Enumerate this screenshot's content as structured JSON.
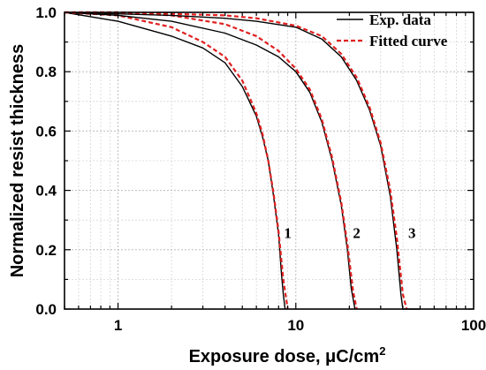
{
  "chart_data": {
    "type": "line",
    "title": "",
    "xlabel": "Exposure dose, μC/cm",
    "xlabel_superscript": "2",
    "ylabel": "Normalized resist thickness",
    "xscale": "log",
    "xlim": [
      0.5,
      100
    ],
    "ylim": [
      0.0,
      1.0
    ],
    "xticks": [
      {
        "value": 1,
        "label": "1"
      },
      {
        "value": 10,
        "label": "10"
      },
      {
        "value": 100,
        "label": "100"
      }
    ],
    "yticks": [
      {
        "value": 0.0,
        "label": "0.0"
      },
      {
        "value": 0.2,
        "label": "0.2"
      },
      {
        "value": 0.4,
        "label": "0.4"
      },
      {
        "value": 0.6,
        "label": "0.6"
      },
      {
        "value": 0.8,
        "label": "0.8"
      },
      {
        "value": 1.0,
        "label": "1.0"
      }
    ],
    "grid": true,
    "legend_position": "top-right",
    "legend": [
      {
        "label": "Exp. data",
        "style": "solid",
        "color": "#000000"
      },
      {
        "label": "Fitted curve",
        "style": "dashed",
        "color": "#e02020"
      }
    ],
    "series": [
      {
        "curve_label": "1",
        "exp": {
          "x": [
            0.5,
            1,
            2,
            3,
            4,
            5,
            6,
            6.5,
            7,
            7.5,
            8,
            8.3,
            8.5,
            8.7
          ],
          "y": [
            1.0,
            0.97,
            0.92,
            0.88,
            0.83,
            0.75,
            0.65,
            0.58,
            0.5,
            0.38,
            0.25,
            0.12,
            0.05,
            0.0
          ]
        },
        "fit": {
          "x": [
            0.5,
            1,
            2,
            3,
            4,
            5,
            6,
            6.5,
            7,
            7.5,
            8,
            8.5,
            9
          ],
          "y": [
            1.0,
            0.99,
            0.95,
            0.9,
            0.85,
            0.77,
            0.66,
            0.59,
            0.5,
            0.39,
            0.26,
            0.1,
            0.0
          ]
        },
        "label_at": {
          "x": 9.0,
          "y": 0.24
        }
      },
      {
        "curve_label": "2",
        "exp": {
          "x": [
            0.5,
            1,
            2,
            4,
            6,
            8,
            10,
            12,
            14,
            16,
            18,
            19.5,
            20.5,
            21.5
          ],
          "y": [
            1.0,
            0.99,
            0.97,
            0.93,
            0.89,
            0.85,
            0.8,
            0.73,
            0.63,
            0.5,
            0.35,
            0.2,
            0.07,
            0.0
          ]
        },
        "fit": {
          "x": [
            0.5,
            1,
            2,
            4,
            6,
            8,
            10,
            12,
            14,
            16,
            18,
            19.5,
            21,
            22
          ],
          "y": [
            1.0,
            1.0,
            0.99,
            0.96,
            0.92,
            0.87,
            0.81,
            0.74,
            0.64,
            0.51,
            0.36,
            0.22,
            0.06,
            0.0
          ]
        },
        "label_at": {
          "x": 22.0,
          "y": 0.24
        }
      },
      {
        "curve_label": "3",
        "exp": {
          "x": [
            0.5,
            1,
            2,
            4,
            6,
            10,
            14,
            18,
            22,
            26,
            30,
            34,
            37,
            39,
            40,
            50
          ],
          "y": [
            1.0,
            0.995,
            0.99,
            0.98,
            0.97,
            0.95,
            0.91,
            0.85,
            0.77,
            0.67,
            0.55,
            0.38,
            0.2,
            0.05,
            0.0,
            0.0
          ]
        },
        "fit": {
          "x": [
            0.5,
            1,
            2,
            4,
            6,
            10,
            14,
            18,
            22,
            26,
            30,
            34,
            37,
            40,
            42
          ],
          "y": [
            1.0,
            1.0,
            0.995,
            0.99,
            0.98,
            0.955,
            0.92,
            0.86,
            0.78,
            0.68,
            0.56,
            0.4,
            0.24,
            0.05,
            0.0
          ]
        },
        "label_at": {
          "x": 45.0,
          "y": 0.24
        }
      }
    ]
  }
}
